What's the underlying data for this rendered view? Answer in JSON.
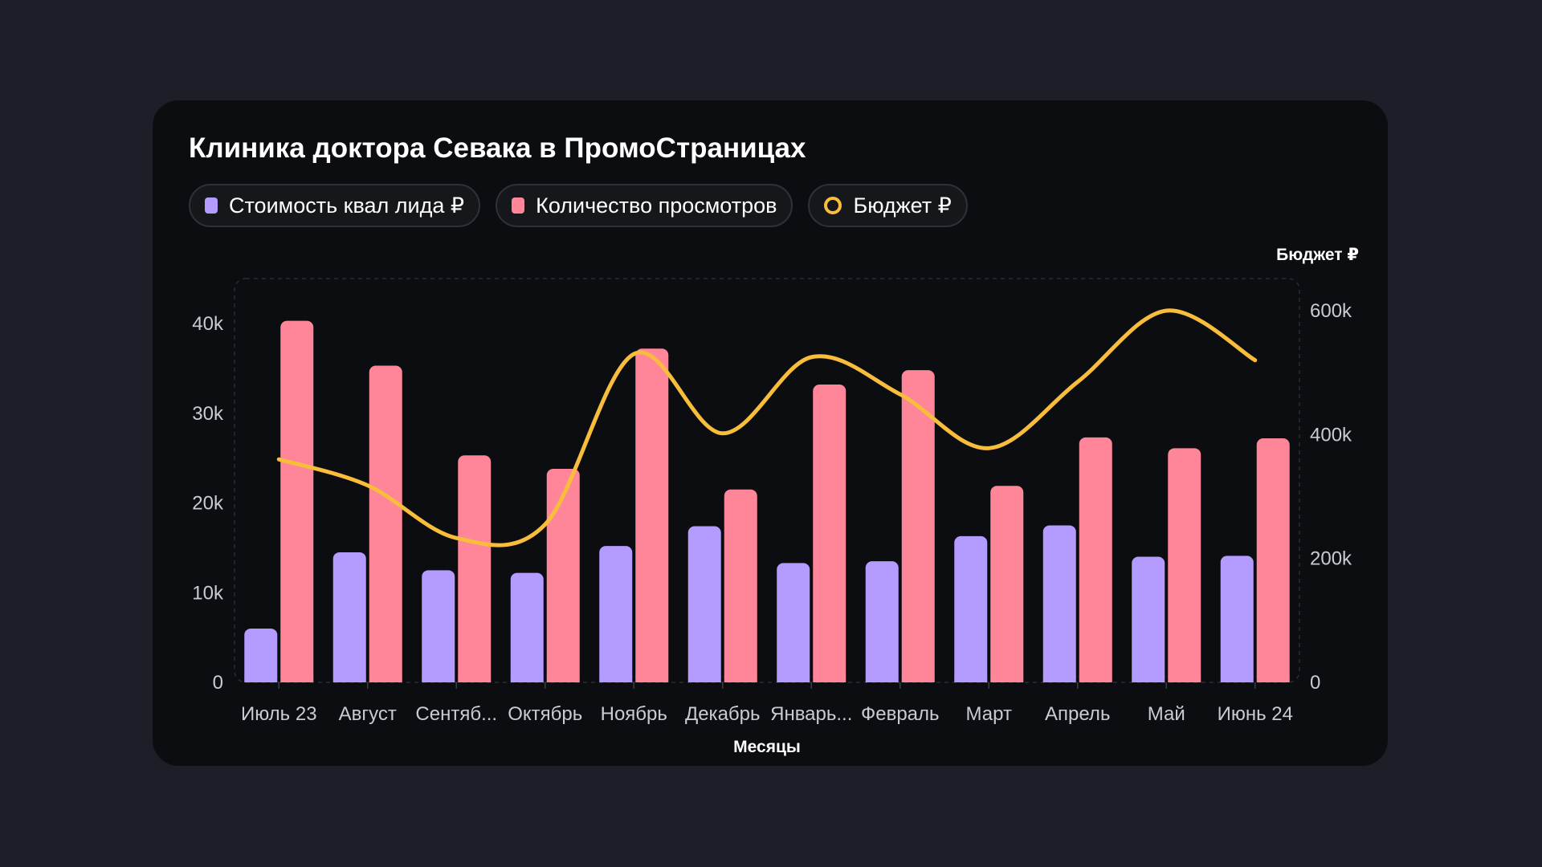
{
  "chart_data": {
    "type": "bar",
    "title": "Клиника доктора Севака в ПромоСтраницах",
    "xlabel": "Месяцы",
    "ylabel": "",
    "y2label": "Бюджет ₽",
    "categories": [
      "Июль 23",
      "Август",
      "Сентяб...",
      "Октябрь",
      "Ноябрь",
      "Декабрь",
      "Январь...",
      "Февраль",
      "Март",
      "Апрель",
      "Май",
      "Июнь 24"
    ],
    "ylim": [
      0,
      45000
    ],
    "y_ticks": [
      {
        "value": 0,
        "label": "0"
      },
      {
        "value": 10000,
        "label": "10k"
      },
      {
        "value": 20000,
        "label": "20k"
      },
      {
        "value": 30000,
        "label": "30k"
      },
      {
        "value": 40000,
        "label": "40k"
      }
    ],
    "y2lim": [
      0,
      620000
    ],
    "y2_ticks": [
      {
        "value": 0,
        "label": "0"
      },
      {
        "value": 200000,
        "label": "200k"
      },
      {
        "value": 400000,
        "label": "400k"
      },
      {
        "value": 600000,
        "label": "600k"
      }
    ],
    "legend_position": "top-left",
    "grid": false,
    "series": [
      {
        "name": "Стоимость квал лида ₽",
        "kind": "bar",
        "axis": "left",
        "color": "#b39bff",
        "values": [
          6000,
          14500,
          12500,
          12200,
          15200,
          17400,
          13300,
          13500,
          16300,
          17500,
          14000,
          14100
        ]
      },
      {
        "name": "Количество просмотров",
        "kind": "bar",
        "axis": "left",
        "color": "#ff8599",
        "values": [
          40300,
          35300,
          25300,
          23800,
          37200,
          21500,
          33200,
          34800,
          21900,
          27300,
          26100,
          27200
        ]
      },
      {
        "name": "Бюджет ₽",
        "kind": "line",
        "axis": "right",
        "color": "#f7bd3b",
        "values": [
          360000,
          318000,
          233000,
          255000,
          530000,
          402000,
          525000,
          465000,
          378000,
          485000,
          600000,
          520000
        ]
      }
    ]
  }
}
